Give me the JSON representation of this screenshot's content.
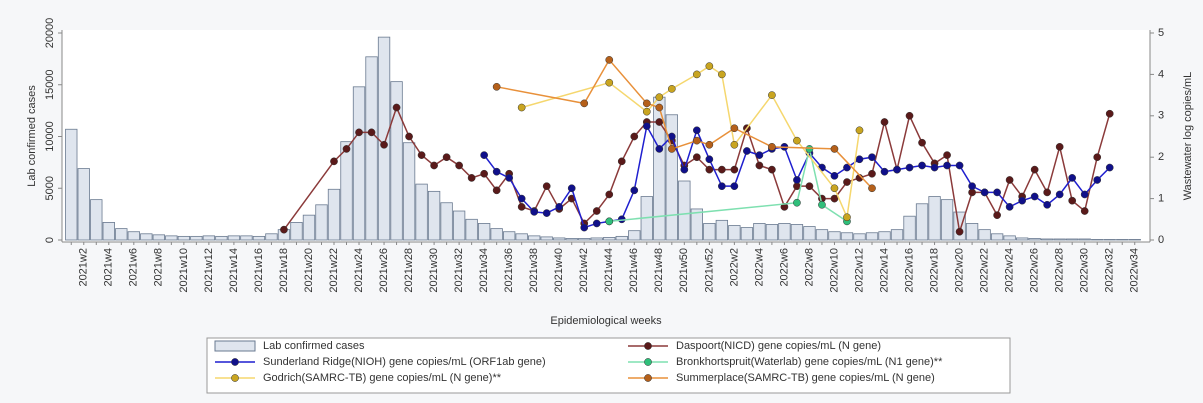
{
  "chart_data": {
    "type": "combo",
    "ylabel": "Lab  confirmed cases",
    "y2label": "Wastewater log copies/mL",
    "xlabel": "Epidemiological weeks",
    "categories": [
      null,
      "2021w2",
      null,
      "2021w4",
      null,
      "2021w6",
      null,
      "2021w8",
      null,
      "2021w10",
      null,
      "2021w12",
      null,
      "2021w14",
      null,
      "2021w16",
      null,
      "2021w18",
      null,
      "2021w20",
      null,
      "2021w22",
      null,
      "2021w24",
      null,
      "2021w26",
      null,
      "2021w28",
      null,
      "2021w30",
      null,
      "2021w32",
      null,
      "2021w34",
      null,
      "2021w36",
      null,
      "2021w38",
      null,
      "2021w40",
      null,
      "2021w42",
      null,
      "2021w44",
      null,
      "2021w46",
      null,
      "2021w48",
      null,
      "2021w50",
      null,
      "2021w52",
      null,
      "2022w2",
      null,
      "2022w4",
      null,
      "2022w6",
      null,
      "2022w8",
      null,
      "2022w10",
      null,
      "2022w12",
      null,
      "2022w14",
      null,
      "2022w16",
      null,
      "2022w18",
      null,
      "2022w20",
      null,
      "2022w22",
      null,
      "2022w24",
      null,
      "2022w26",
      null,
      "2022w28",
      null,
      "2022w30",
      null,
      "2022w32",
      null,
      "2022w34"
    ],
    "ylim": [
      0,
      20000
    ],
    "yticks": [
      0,
      5000,
      10000,
      15000,
      20000
    ],
    "y2lim": [
      0,
      5
    ],
    "y2ticks": [
      0,
      1,
      2,
      3,
      4,
      5
    ],
    "series": [
      {
        "name": "Lab  confirmed cases",
        "type": "bar",
        "color": "#dfe5ee",
        "values": [
          10700,
          6900,
          3900,
          1700,
          1100,
          800,
          600,
          500,
          400,
          350,
          350,
          400,
          350,
          400,
          400,
          350,
          600,
          1000,
          1700,
          2400,
          3400,
          4900,
          9500,
          14800,
          17700,
          19600,
          15300,
          9400,
          5400,
          4700,
          3600,
          2800,
          2000,
          1600,
          1100,
          800,
          600,
          400,
          300,
          200,
          150,
          150,
          200,
          250,
          350,
          900,
          4200,
          13800,
          12100,
          5700,
          3000,
          1600,
          1900,
          1400,
          1200,
          1600,
          1500,
          1600,
          1500,
          1300,
          1000,
          800,
          700,
          600,
          700,
          800,
          1000,
          2300,
          3500,
          4200,
          3900,
          2700,
          1600,
          1000,
          600,
          400,
          200,
          150,
          100,
          100,
          100,
          100,
          50,
          50,
          50,
          50
        ]
      },
      {
        "name": "Daspoort(NICD) gene copies/mL (N gene)",
        "type": "line",
        "axis": "y2",
        "color": "#8b3a3a",
        "values": [
          null,
          null,
          null,
          null,
          null,
          null,
          null,
          null,
          null,
          null,
          null,
          null,
          null,
          null,
          null,
          null,
          null,
          0.25,
          null,
          null,
          null,
          1.9,
          2.2,
          2.6,
          2.6,
          2.3,
          3.2,
          2.5,
          2.05,
          1.8,
          2.0,
          1.8,
          1.5,
          1.6,
          1.2,
          1.6,
          0.8,
          0.7,
          1.3,
          0.75,
          1.0,
          0.4,
          0.7,
          1.1,
          1.9,
          2.5,
          2.85,
          2.85,
          2.4,
          1.8,
          2.0,
          1.7,
          1.7,
          1.7,
          2.7,
          1.8,
          1.7,
          0.8,
          1.3,
          1.3,
          1.0,
          1.0,
          1.4,
          1.5,
          1.6,
          2.85,
          1.7,
          3.0,
          2.35,
          1.85,
          2.05,
          0.2,
          1.15,
          1.15,
          0.6,
          1.45,
          1.05,
          1.7,
          1.15,
          2.25,
          0.95,
          0.7,
          2.0,
          3.05,
          null,
          null
        ]
      },
      {
        "name": "Sunderland Ridge(NIOH) gene copies/mL (ORF1ab gene)",
        "type": "line",
        "axis": "y2",
        "color": "#1f1fcf",
        "values": [
          null,
          null,
          null,
          null,
          null,
          null,
          null,
          null,
          null,
          null,
          null,
          null,
          null,
          null,
          null,
          null,
          null,
          null,
          null,
          null,
          null,
          null,
          null,
          null,
          null,
          null,
          null,
          null,
          null,
          null,
          null,
          null,
          null,
          2.05,
          1.65,
          1.5,
          1.0,
          0.68,
          0.65,
          0.8,
          1.25,
          0.3,
          0.4,
          0.45,
          0.5,
          1.2,
          2.75,
          2.2,
          2.5,
          1.7,
          2.65,
          1.95,
          1.3,
          1.3,
          2.15,
          2.05,
          2.2,
          2.25,
          1.45,
          2.1,
          1.75,
          1.55,
          1.75,
          1.95,
          2.0,
          1.65,
          1.7,
          1.75,
          1.8,
          1.75,
          1.8,
          1.8,
          1.3,
          1.15,
          1.15,
          0.8,
          0.95,
          1.05,
          0.85,
          1.1,
          1.5,
          1.1,
          1.45,
          1.75,
          null,
          null
        ]
      },
      {
        "name": " Bronkhortspruit(Waterlab) gene copies/mL (N1 gene)**",
        "type": "line",
        "axis": "y2",
        "color": "#7ee0b0",
        "values": [
          null,
          null,
          null,
          null,
          null,
          null,
          null,
          null,
          null,
          null,
          null,
          null,
          null,
          null,
          null,
          null,
          null,
          null,
          null,
          null,
          null,
          null,
          null,
          null,
          null,
          null,
          null,
          null,
          null,
          null,
          null,
          null,
          null,
          null,
          null,
          null,
          null,
          null,
          null,
          null,
          null,
          null,
          null,
          0.45,
          null,
          null,
          null,
          null,
          null,
          null,
          null,
          null,
          null,
          null,
          null,
          null,
          null,
          null,
          0.9,
          2.2,
          0.85,
          null,
          0.45,
          null,
          null,
          null,
          null,
          null,
          null,
          null,
          null,
          null,
          null,
          null,
          null,
          null,
          null,
          null,
          null,
          null,
          null,
          null,
          null,
          null,
          null,
          null
        ]
      },
      {
        "name": "Godrich(SAMRC-TB) gene copies/mL (N gene)**",
        "type": "line",
        "axis": "y2",
        "color": "#f5d76e",
        "values": [
          null,
          null,
          null,
          null,
          null,
          null,
          null,
          null,
          null,
          null,
          null,
          null,
          null,
          null,
          null,
          null,
          null,
          null,
          null,
          null,
          null,
          null,
          null,
          null,
          null,
          null,
          null,
          null,
          null,
          null,
          null,
          null,
          null,
          null,
          null,
          null,
          3.2,
          null,
          null,
          null,
          null,
          null,
          null,
          3.8,
          null,
          null,
          3.1,
          3.45,
          3.65,
          null,
          4.0,
          4.2,
          4.0,
          2.3,
          null,
          null,
          3.5,
          null,
          2.4,
          null,
          null,
          1.25,
          0.55,
          2.65,
          null,
          null,
          null,
          null,
          null,
          null,
          null,
          null,
          null,
          null,
          null,
          null,
          null,
          null,
          null,
          null,
          null,
          null,
          null,
          null,
          null,
          null
        ]
      },
      {
        "name": "Summerplace(SAMRC-TB) gene copies/mL (N gene)",
        "type": "line",
        "axis": "y2",
        "color": "#e8903a",
        "values": [
          null,
          null,
          null,
          null,
          null,
          null,
          null,
          null,
          null,
          null,
          null,
          null,
          null,
          null,
          null,
          null,
          null,
          null,
          null,
          null,
          null,
          null,
          null,
          null,
          null,
          null,
          null,
          null,
          null,
          null,
          null,
          null,
          null,
          null,
          3.7,
          null,
          null,
          null,
          null,
          null,
          null,
          3.3,
          null,
          4.35,
          null,
          null,
          3.3,
          3.2,
          2.2,
          null,
          2.4,
          2.3,
          null,
          2.7,
          null,
          null,
          2.25,
          null,
          null,
          null,
          null,
          2.2,
          null,
          null,
          1.25,
          null,
          null,
          null,
          null,
          null,
          null,
          null,
          null,
          null,
          null,
          null,
          null,
          null,
          null,
          null,
          null,
          null,
          null,
          null,
          null,
          null
        ]
      }
    ]
  }
}
